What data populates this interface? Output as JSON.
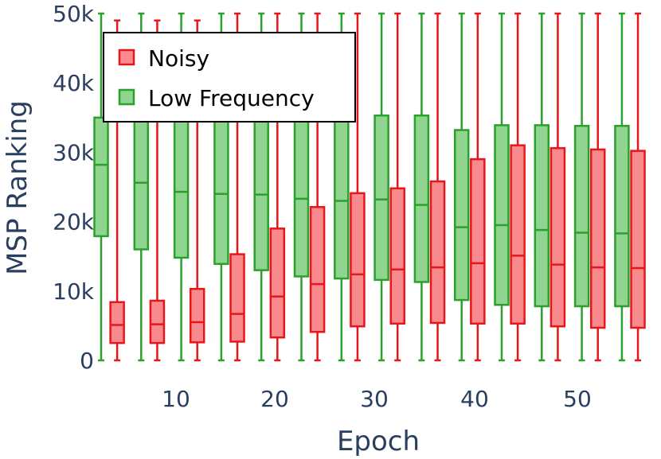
{
  "chart_data": {
    "type": "box",
    "xlabel": "Epoch",
    "ylabel": "MSP Ranking",
    "ylim": [
      0,
      50000
    ],
    "xlim": [
      1,
      58
    ],
    "x_ticks": [
      10,
      20,
      30,
      40,
      50
    ],
    "x_tick_labels": [
      "10",
      "20",
      "30",
      "40",
      "50"
    ],
    "y_ticks": [
      0,
      10000,
      20000,
      30000,
      40000,
      50000
    ],
    "y_tick_labels": [
      "0",
      "10k",
      "20k",
      "30k",
      "40k",
      "50k"
    ],
    "grid": false,
    "legend_position": "top-left",
    "series": [
      {
        "name": "Low Frequency",
        "color": "#2ca02c",
        "fill": "#8fd48f",
        "boxes": [
          {
            "x": 2,
            "min": 0,
            "q1": 17900,
            "median": 28200,
            "q3": 35000,
            "max": 50000
          },
          {
            "x": 7,
            "min": 0,
            "q1": 16000,
            "median": 25600,
            "q3": 35000,
            "max": 50000
          },
          {
            "x": 12,
            "min": 0,
            "q1": 14800,
            "median": 24300,
            "q3": 35000,
            "max": 50000
          },
          {
            "x": 17,
            "min": 0,
            "q1": 13900,
            "median": 24000,
            "q3": 35000,
            "max": 50000
          },
          {
            "x": 22,
            "min": 0,
            "q1": 13000,
            "median": 23900,
            "q3": 35000,
            "max": 50000
          },
          {
            "x": 27,
            "min": 0,
            "q1": 12100,
            "median": 23300,
            "q3": 35000,
            "max": 50000
          },
          {
            "x": 32,
            "min": 0,
            "q1": 11800,
            "median": 23000,
            "q3": 35000,
            "max": 50000
          },
          {
            "x": 37,
            "min": 0,
            "q1": 11600,
            "median": 23200,
            "q3": 35300,
            "max": 50000
          },
          {
            "x": 42,
            "min": 0,
            "q1": 11300,
            "median": 22400,
            "q3": 35300,
            "max": 50000
          },
          {
            "x": 47,
            "min": 0,
            "q1": 8700,
            "median": 19200,
            "q3": 33200,
            "max": 50000
          },
          {
            "x": 52,
            "min": 0,
            "q1": 8000,
            "median": 19500,
            "q3": 33900,
            "max": 50000
          },
          {
            "x": 57,
            "min": 0,
            "q1": 7800,
            "median": 18800,
            "q3": 33900,
            "max": 50000
          },
          {
            "x": 62,
            "min": 0,
            "q1": 7800,
            "median": 18400,
            "q3": 33800,
            "max": 50000
          },
          {
            "x": 67,
            "min": 0,
            "q1": 7800,
            "median": 18300,
            "q3": 33800,
            "max": 50000
          }
        ]
      },
      {
        "name": "Noisy",
        "color": "#e8161b",
        "fill": "#f88a8e",
        "boxes": [
          {
            "x": 4,
            "min": 0,
            "q1": 2500,
            "median": 5100,
            "q3": 8400,
            "max": 49000
          },
          {
            "x": 9,
            "min": 0,
            "q1": 2500,
            "median": 5200,
            "q3": 8600,
            "max": 49000
          },
          {
            "x": 14,
            "min": 0,
            "q1": 2600,
            "median": 5500,
            "q3": 10300,
            "max": 49000
          },
          {
            "x": 19,
            "min": 0,
            "q1": 2700,
            "median": 6700,
            "q3": 15300,
            "max": 50000
          },
          {
            "x": 24,
            "min": 0,
            "q1": 3300,
            "median": 9200,
            "q3": 19000,
            "max": 50000
          },
          {
            "x": 29,
            "min": 0,
            "q1": 4100,
            "median": 11000,
            "q3": 22100,
            "max": 50000
          },
          {
            "x": 34,
            "min": 0,
            "q1": 4900,
            "median": 12400,
            "q3": 24100,
            "max": 50000
          },
          {
            "x": 39,
            "min": 0,
            "q1": 5300,
            "median": 13100,
            "q3": 24800,
            "max": 50000
          },
          {
            "x": 44,
            "min": 0,
            "q1": 5400,
            "median": 13400,
            "q3": 25800,
            "max": 50000
          },
          {
            "x": 49,
            "min": 0,
            "q1": 5300,
            "median": 14000,
            "q3": 29000,
            "max": 50000
          },
          {
            "x": 54,
            "min": 0,
            "q1": 5300,
            "median": 15100,
            "q3": 31000,
            "max": 50000
          },
          {
            "x": 59,
            "min": 0,
            "q1": 4900,
            "median": 13800,
            "q3": 30600,
            "max": 50000
          },
          {
            "x": 64,
            "min": 0,
            "q1": 4700,
            "median": 13400,
            "q3": 30400,
            "max": 50000
          },
          {
            "x": 69,
            "min": 0,
            "q1": 4700,
            "median": 13300,
            "q3": 30200,
            "max": 50000
          }
        ]
      }
    ],
    "legend": [
      {
        "label": "Noisy",
        "color": "#e8161b",
        "fill": "#f88a8e"
      },
      {
        "label": "Low Frequency",
        "color": "#2ca02c",
        "fill": "#8fd48f"
      }
    ]
  }
}
